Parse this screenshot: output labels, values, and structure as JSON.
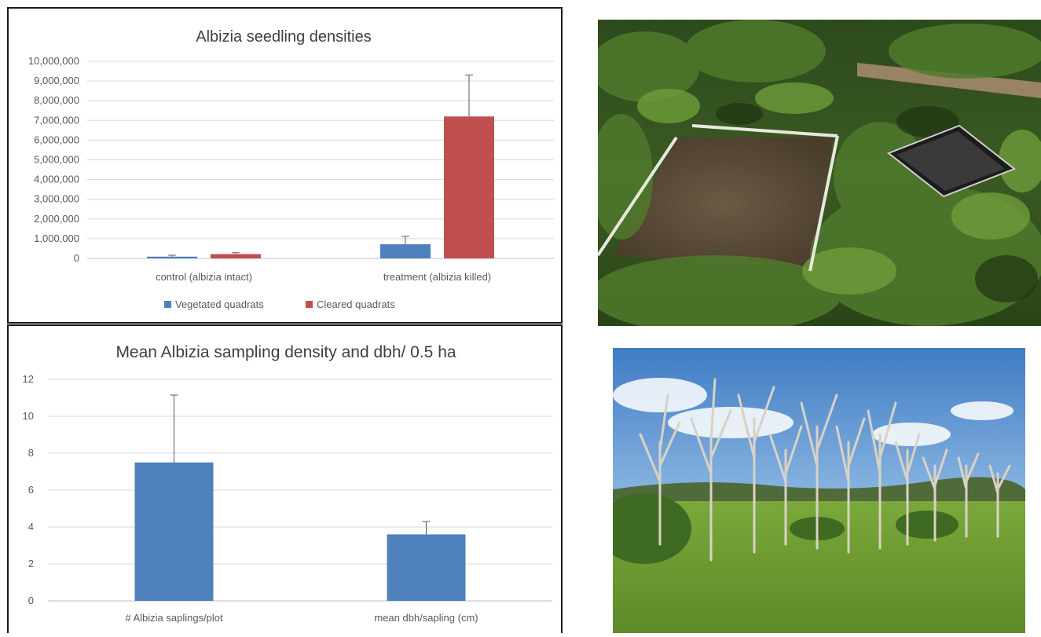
{
  "chart_data": [
    {
      "type": "bar",
      "title": "Albizia seedling densities",
      "categories": [
        "control (albizia intact)",
        "treatment (albizia killed)"
      ],
      "series": [
        {
          "name": "Vegetated quadrats",
          "values": [
            90000,
            720000
          ],
          "error": [
            70000,
            400000
          ],
          "color": "#4f81bd"
        },
        {
          "name": "Cleared quadrats",
          "values": [
            220000,
            7200000
          ],
          "error": [
            70000,
            2100000
          ],
          "color": "#c0504d"
        }
      ],
      "ylim": [
        0,
        10000000
      ],
      "yticks": [
        0,
        1000000,
        2000000,
        3000000,
        4000000,
        5000000,
        6000000,
        7000000,
        8000000,
        9000000,
        10000000
      ],
      "ytick_labels": [
        "0",
        "1,000,000",
        "2,000,000",
        "3,000,000",
        "4,000,000",
        "5,000,000",
        "6,000,000",
        "7,000,000",
        "8,000,000",
        "9,000,000",
        "10,000,000"
      ],
      "grid": true,
      "legend": "bottom"
    },
    {
      "type": "bar",
      "title": "Mean Albizia sampling density and dbh/ 0.5 ha",
      "categories": [
        "# Albizia saplings/plot",
        "mean dbh/sapling (cm)"
      ],
      "series": [
        {
          "values": [
            7.5,
            3.6
          ],
          "error": [
            3.65,
            0.7
          ],
          "color": "#4f81bd"
        }
      ],
      "ylim": [
        0,
        12
      ],
      "yticks": [
        0,
        2,
        4,
        6,
        8,
        10,
        12
      ],
      "ytick_labels": [
        "0",
        "2",
        "4",
        "6",
        "8",
        "10",
        "12"
      ],
      "grid": true
    }
  ]
}
